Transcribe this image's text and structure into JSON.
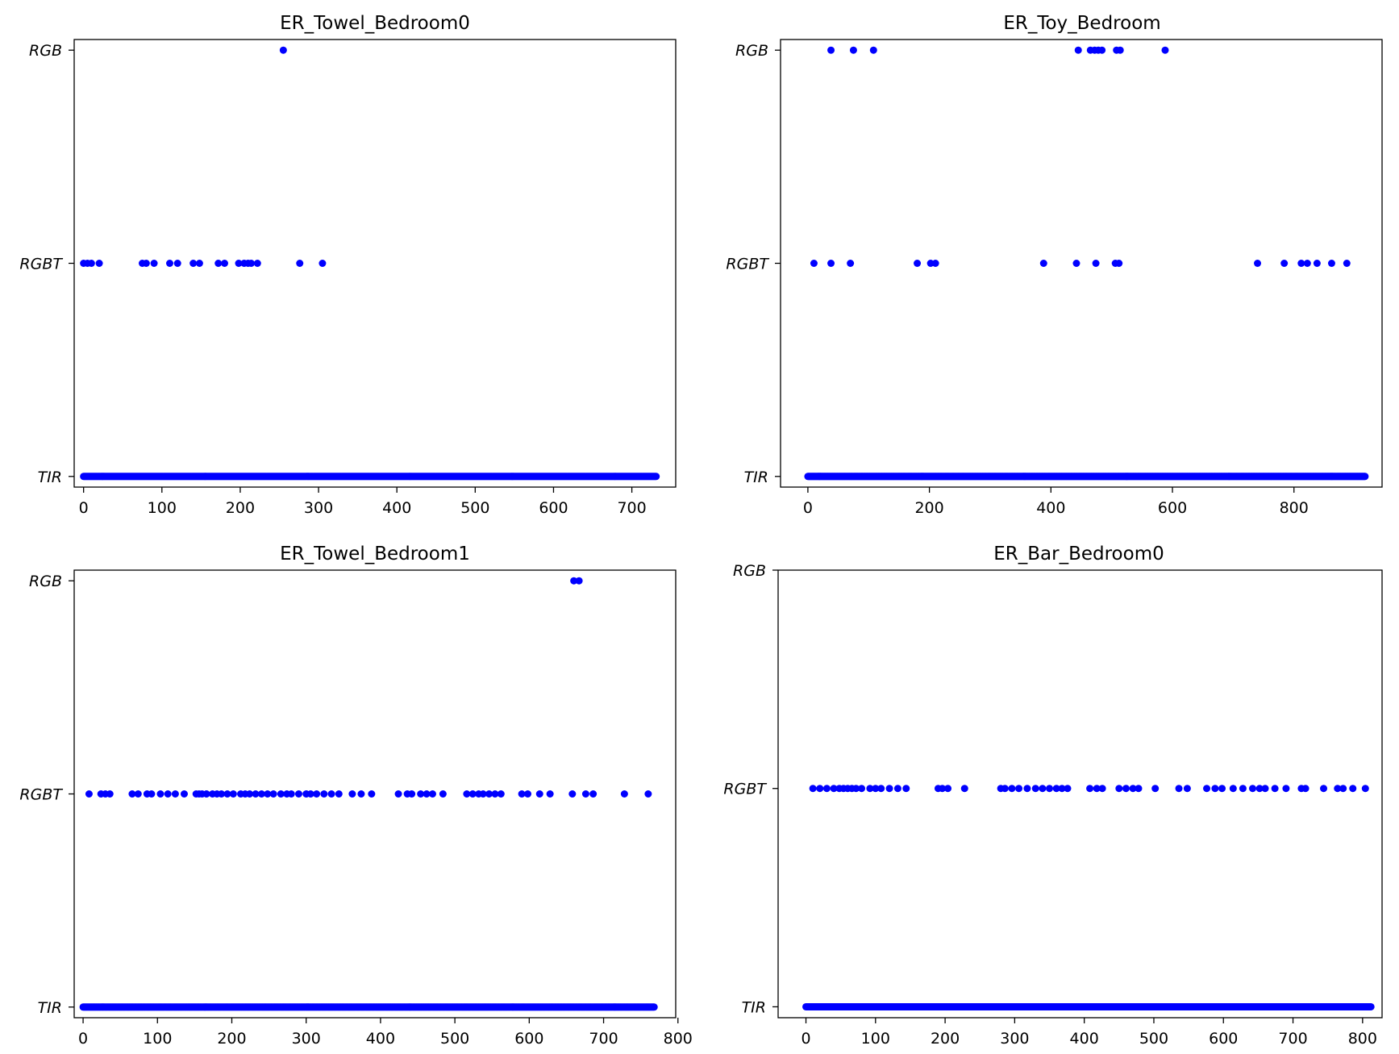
{
  "chart_data": [
    {
      "type": "scatter",
      "title": "ER_Towel_Bedroom0",
      "marker_color": "#0000ff",
      "categories": [
        "TIR",
        "RGBT",
        "RGB"
      ],
      "xlim": [
        -12,
        756
      ],
      "xticks": [
        0,
        100,
        200,
        300,
        400,
        500,
        600,
        700
      ],
      "ylim": [
        -0.05,
        2.05
      ],
      "grid": false,
      "points": {
        "RGB": [
          255
        ],
        "RGBT": [
          0,
          5,
          10,
          20,
          75,
          80,
          90,
          110,
          120,
          140,
          148,
          172,
          180,
          198,
          205,
          210,
          214,
          222,
          276,
          305
        ],
        "TIR_range": [
          0,
          731
        ]
      }
    },
    {
      "type": "scatter",
      "title": "ER_Toy_Bedroom",
      "marker_color": "#0000ff",
      "categories": [
        "TIR",
        "RGBT",
        "RGB"
      ],
      "xlim": [
        -45,
        945
      ],
      "xticks": [
        0,
        200,
        400,
        600,
        800
      ],
      "ylim": [
        -0.05,
        2.05
      ],
      "grid": false,
      "points": {
        "RGB": [
          38,
          75,
          108,
          445,
          465,
          472,
          478,
          484,
          508,
          514,
          588
        ],
        "RGBT": [
          10,
          38,
          70,
          180,
          202,
          210,
          388,
          442,
          474,
          506,
          512,
          740,
          784,
          812,
          822,
          838,
          862,
          887
        ],
        "TIR_range": [
          0,
          917
        ]
      }
    },
    {
      "type": "scatter",
      "title": "ER_Towel_Bedroom1",
      "marker_color": "#0000ff",
      "categories": [
        "TIR",
        "RGBT",
        "RGB"
      ],
      "xlim": [
        -12,
        797
      ],
      "xticks": [
        0,
        100,
        200,
        300,
        400,
        500,
        600,
        700,
        800
      ],
      "ylim": [
        -0.05,
        2.05
      ],
      "grid": false,
      "points": {
        "RGB": [
          660,
          667
        ],
        "RGBT": [
          8,
          24,
          30,
          36,
          66,
          74,
          86,
          92,
          104,
          114,
          124,
          136,
          152,
          156,
          160,
          166,
          174,
          180,
          186,
          194,
          202,
          212,
          218,
          224,
          232,
          240,
          248,
          256,
          266,
          274,
          280,
          290,
          300,
          306,
          314,
          324,
          334,
          344,
          362,
          374,
          388,
          424,
          436,
          442,
          454,
          462,
          470,
          484,
          516,
          524,
          532,
          538,
          546,
          554,
          562,
          590,
          598,
          614,
          628,
          658,
          676,
          686,
          728,
          760
        ],
        "TIR_range": [
          0,
          768
        ]
      }
    },
    {
      "type": "scatter",
      "title": "ER_Bar_Bedroom0",
      "marker_color": "#0000ff",
      "categories": [
        "TIR",
        "RGBT",
        "RGB"
      ],
      "xlim": [
        -40,
        828
      ],
      "xticks": [
        0,
        100,
        200,
        300,
        400,
        500,
        600,
        700,
        800
      ],
      "ylim": [
        -0.05,
        2
      ],
      "grid": false,
      "points": {
        "RGB": [],
        "RGBT": [
          10,
          20,
          30,
          40,
          48,
          54,
          60,
          66,
          72,
          80,
          92,
          100,
          108,
          120,
          132,
          144,
          190,
          196,
          204,
          228,
          280,
          286,
          296,
          306,
          318,
          330,
          340,
          350,
          360,
          368,
          376,
          408,
          418,
          426,
          450,
          460,
          470,
          478,
          502,
          536,
          548,
          576,
          588,
          598,
          614,
          628,
          642,
          652,
          660,
          674,
          690,
          712,
          718,
          744,
          764,
          772,
          786,
          804
        ],
        "TIR_range": [
          0,
          812
        ]
      }
    }
  ]
}
